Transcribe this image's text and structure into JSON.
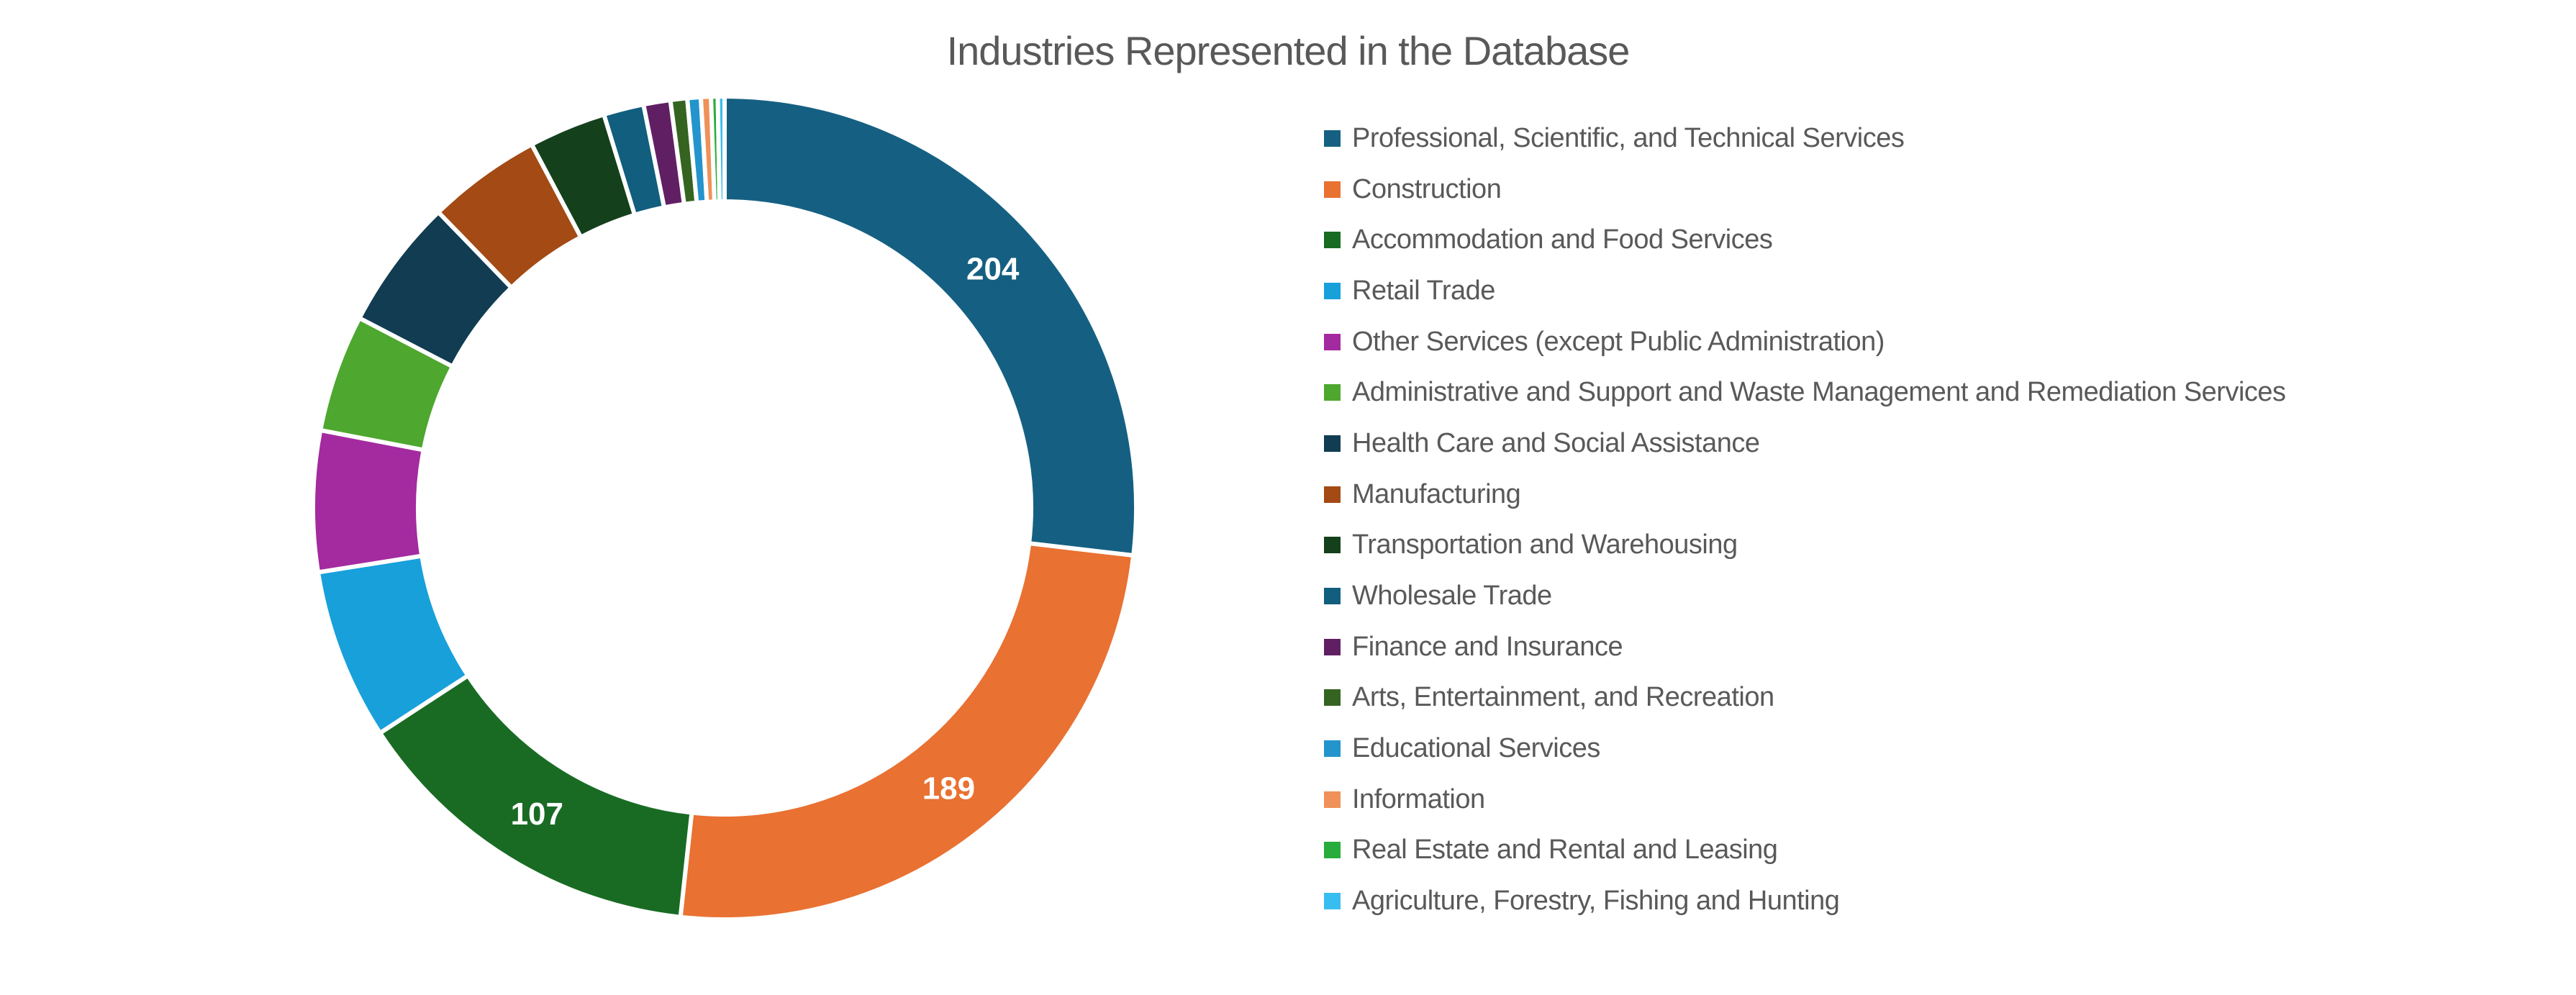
{
  "chart_data": {
    "type": "pie",
    "subtype": "donut",
    "title": "Industries Represented in the Database",
    "legend_position": "right",
    "background_color": "#FFFFFF",
    "title_color": "#595959",
    "legend_text_color": "#595959",
    "data_label_color": "#FFFFFF",
    "gap_color": "#FFFFFF",
    "hole_ratio": 0.745,
    "start_angle_deg": 0,
    "direction": "clockwise",
    "total": 760,
    "visible_data_labels": [
      "204",
      "189",
      "107"
    ],
    "series": [
      {
        "label": "Professional, Scientific, and Technical Services",
        "value": 204,
        "color": "#156082",
        "data_label": "204"
      },
      {
        "label": "Construction",
        "value": 189,
        "color": "#E97132",
        "data_label": "189"
      },
      {
        "label": "Accommodation and Food Services",
        "value": 107,
        "color": "#196B24",
        "data_label": "107"
      },
      {
        "label": "Retail Trade",
        "value": 51,
        "color": "#18A0DB"
      },
      {
        "label": "Other Services (except Public Administration)",
        "value": 42,
        "color": "#A42AA0"
      },
      {
        "label": "Administrative and Support and Waste Management and Remediation Services",
        "value": 35,
        "color": "#4EA72E"
      },
      {
        "label": "Health Care and Social Assistance",
        "value": 39,
        "color": "#113C52"
      },
      {
        "label": "Manufacturing",
        "value": 34,
        "color": "#A34A15"
      },
      {
        "label": "Transportation and Warehousing",
        "value": 23,
        "color": "#14401C"
      },
      {
        "label": "Wholesale Trade",
        "value": 12,
        "color": "#115E7E"
      },
      {
        "label": "Finance and Insurance",
        "value": 8,
        "color": "#611F63"
      },
      {
        "label": "Arts, Entertainment, and Recreation",
        "value": 5,
        "color": "#356420"
      },
      {
        "label": "Educational Services",
        "value": 4,
        "color": "#2394CC"
      },
      {
        "label": "Information",
        "value": 3,
        "color": "#EF9158"
      },
      {
        "label": "Real Estate and Rental and Leasing",
        "value": 2,
        "color": "#28AC3B"
      },
      {
        "label": "Agriculture, Forestry, Fishing and Hunting",
        "value": 2,
        "color": "#38BDF0"
      }
    ]
  }
}
